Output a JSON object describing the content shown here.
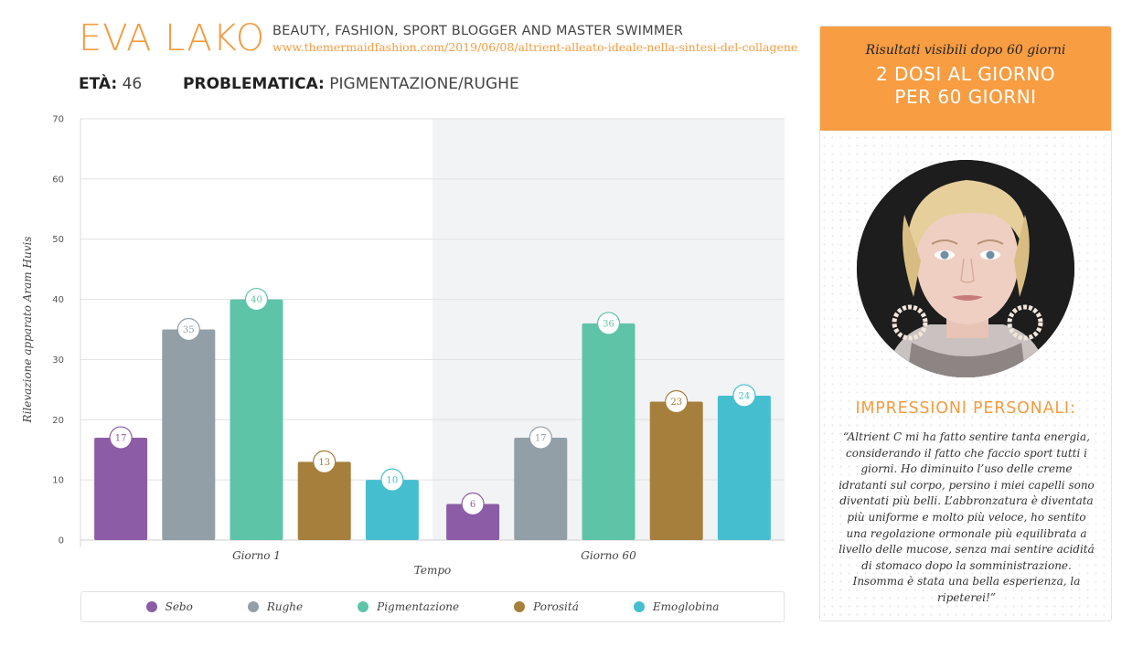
{
  "header": {
    "name": "EVA LAKO",
    "subtitle": "BEAUTY, FASHION, SPORT BLOGGER AND MASTER SWIMMER",
    "url": "www.themermaidfashion.com/2019/06/08/altrient-alleato-ideale-nella-sintesi-del-collagene"
  },
  "info": {
    "age_label": "ETÀ:",
    "age_value": "46",
    "problem_label": "PROBLEMATICA:",
    "problem_value": "PIGMENTAZIONE/RUGHE"
  },
  "chart_data": {
    "type": "bar",
    "categories": [
      "Giorno 1",
      "Giorno 60"
    ],
    "series": [
      {
        "name": "Sebo",
        "color": "#8c5ca6",
        "values": [
          17,
          6
        ]
      },
      {
        "name": "Rughe",
        "color": "#929fa6",
        "values": [
          35,
          17
        ]
      },
      {
        "name": "Pigmentazione",
        "color": "#5ec4a8",
        "values": [
          40,
          36
        ]
      },
      {
        "name": "Porositá",
        "color": "#a67f3c",
        "values": [
          13,
          23
        ]
      },
      {
        "name": "Emoglobina",
        "color": "#45bfcf",
        "values": [
          10,
          24
        ]
      }
    ],
    "xlabel": "Tempo",
    "ylabel": "Rilevazione apparato Aram Huvis",
    "ylim": [
      0,
      70
    ],
    "yticks": [
      0,
      10,
      20,
      30,
      40,
      50,
      60,
      70
    ],
    "grid": true,
    "legend": "bottom"
  },
  "side": {
    "italic_note": "Risultati visibili dopo 60 giorni",
    "dose_line1": "2 DOSI AL GIORNO",
    "dose_line2": "PER 60 GIORNI",
    "impressions_title": "IMPRESSIONI PERSONALI:",
    "impressions_text": "“Altrient C mi ha fatto sentire tanta energia, considerando il fatto che faccio sport tutti i giorni. Ho diminuito l’uso delle creme idratanti sul corpo, persino i miei capelli sono diventati più belli. L’abbronzatura è diventata più uniforme e molto più veloce, ho sentito una regolazione ormonale più equilibrata a livello delle mucose, senza mai sentire aciditá di stomaco dopo la somministrazione. Insomma è stata una bella esperienza, la ripeterei!”"
  }
}
